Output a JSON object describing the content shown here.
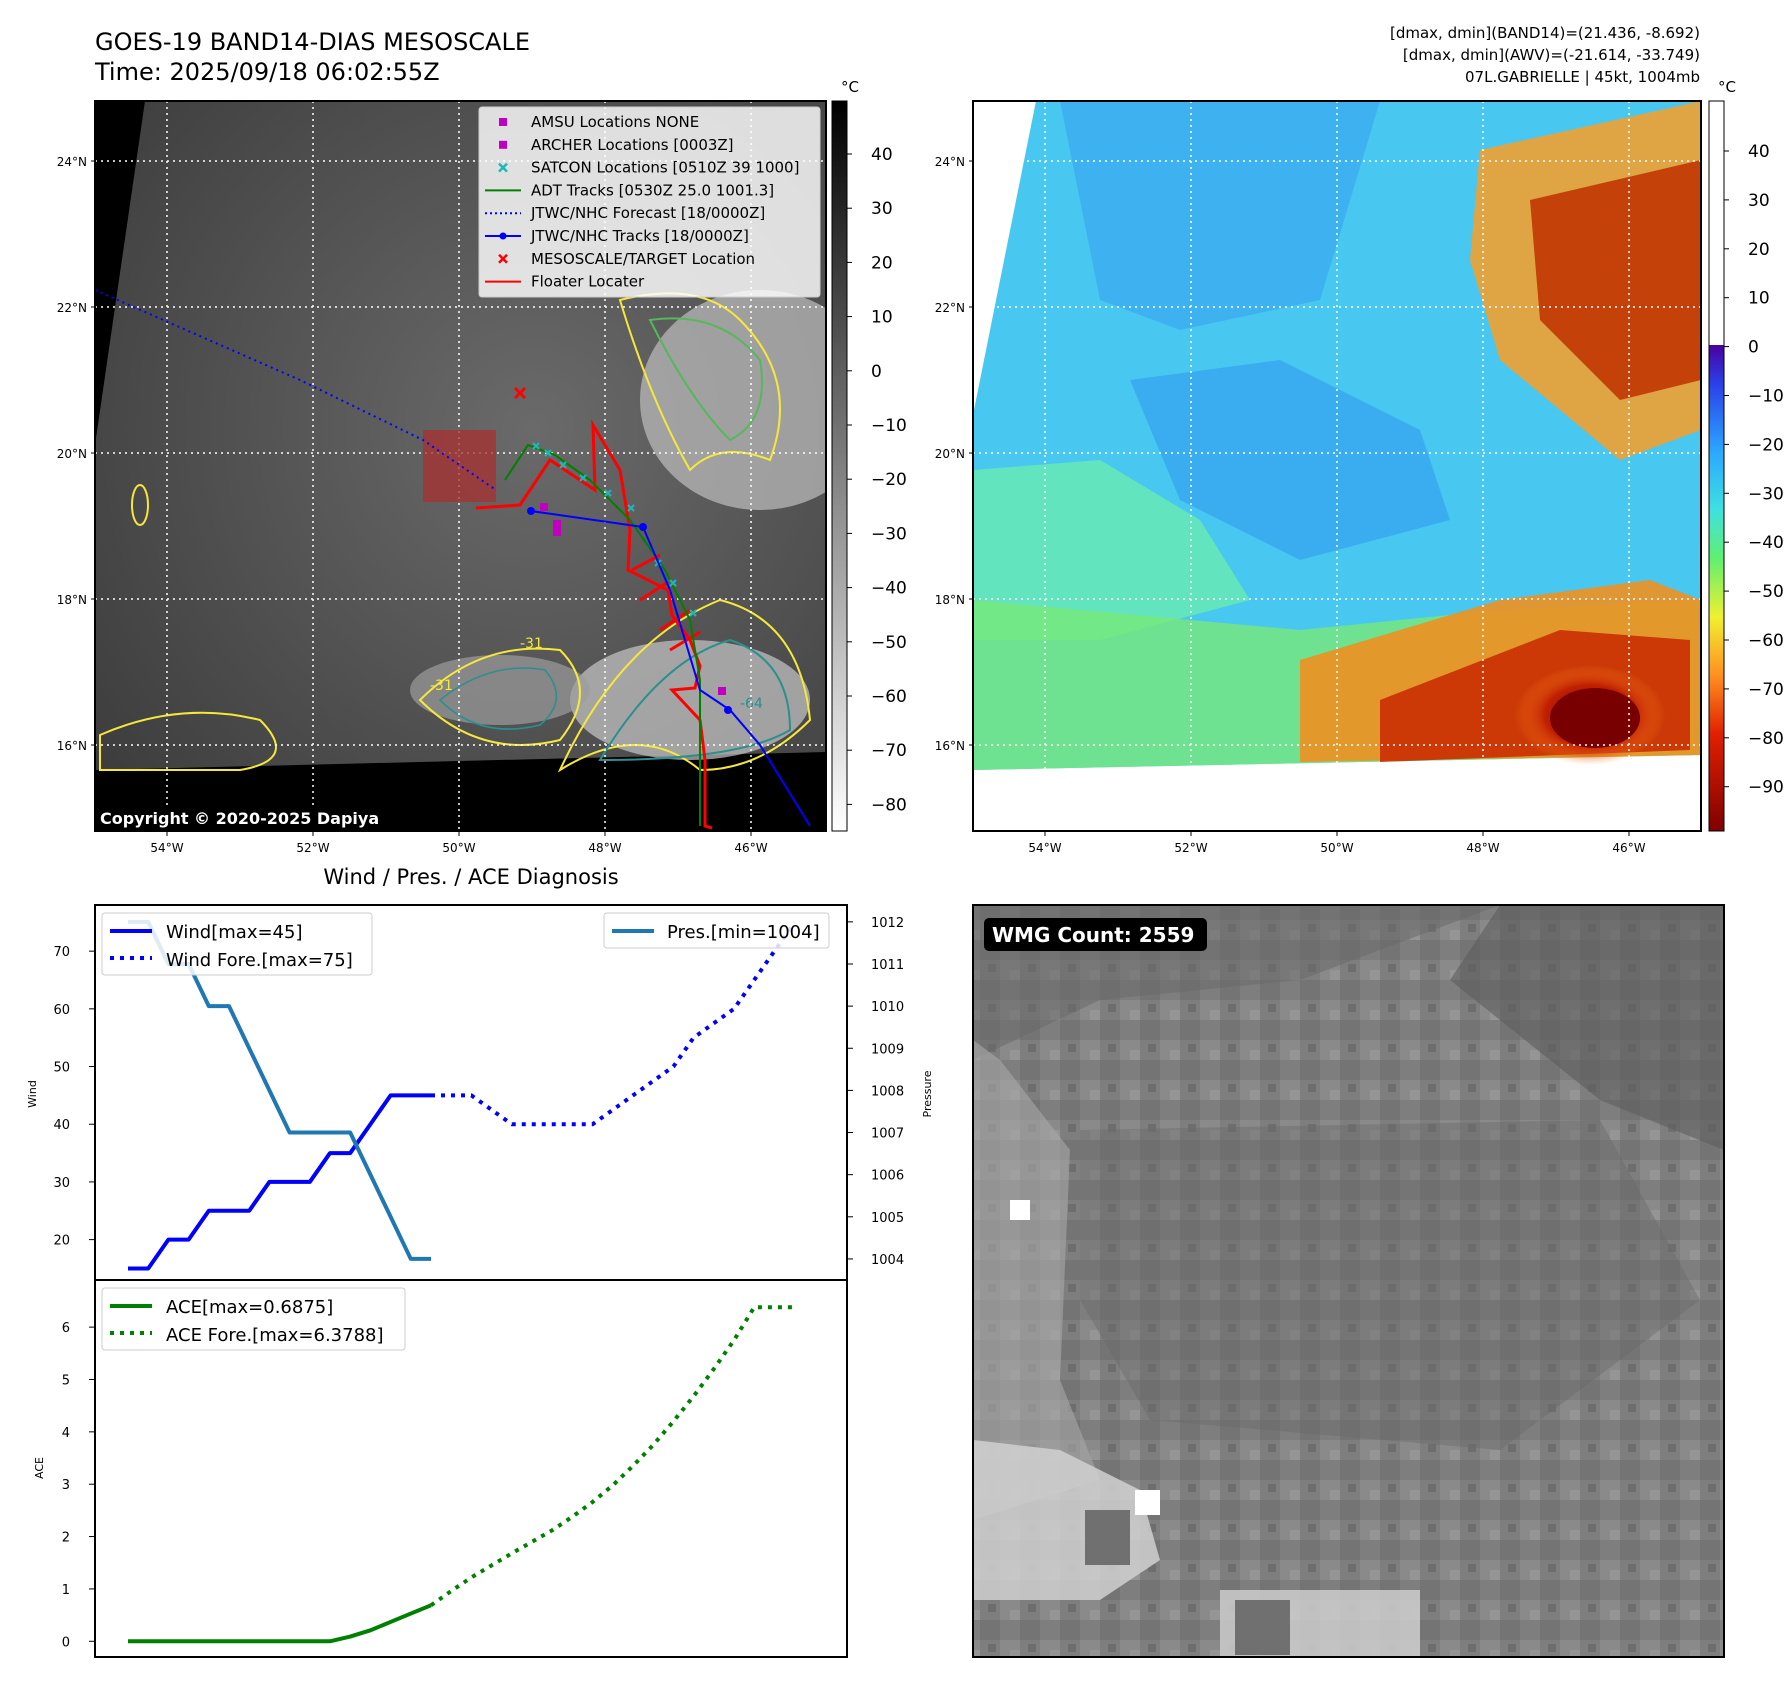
{
  "header": {
    "title_line1": "GOES-19 BAND14-DIAS MESOSCALE",
    "title_line2": "Time: 2025/09/18 06:02:55Z",
    "stats_line1": "[dmax, dmin](BAND14)=(21.436, -8.692)",
    "stats_line2": "[dmax, dmin](AWV)=(-21.614, -33.749)",
    "stats_line3": "07L.GABRIELLE | 45kt, 1004mb"
  },
  "map_panels": {
    "lat_labels": [
      "24°N",
      "22°N",
      "20°N",
      "18°N",
      "16°N"
    ],
    "lon_labels": [
      "54°W",
      "52°W",
      "50°W",
      "48°W",
      "46°W"
    ],
    "copyright": "Copyright © 2020-2025 Dapiya",
    "contour_label": "-31",
    "contour_label2": "-64",
    "contour_colors": {
      "yellow": "#f5e83a",
      "green": "#55b85a",
      "teal": "#2c8f8f",
      "purple": "#3c3c7a"
    }
  },
  "ir_colorbar": {
    "unit": "°C",
    "ticks": [
      "40",
      "30",
      "20",
      "10",
      "0",
      "−10",
      "−20",
      "−30",
      "−40",
      "−50",
      "−60",
      "−70",
      "−80"
    ]
  },
  "awv_colorbar": {
    "unit": "°C",
    "ticks": [
      "40",
      "30",
      "20",
      "10",
      "0",
      "−10",
      "−20",
      "−30",
      "−40",
      "−50",
      "−60",
      "−70",
      "−80",
      "−90"
    ]
  },
  "legend": [
    {
      "label": "AMSU Locations NONE",
      "kind": "square",
      "color": "#c000c0"
    },
    {
      "label": "ARCHER Locations [0003Z]",
      "kind": "square",
      "color": "#c000c0"
    },
    {
      "label": "SATCON Locations [0510Z 39 1000]",
      "kind": "x",
      "color": "#1fb8b8"
    },
    {
      "label": "ADT Tracks [0530Z 25.0 1001.3]",
      "kind": "line",
      "color": "#008000"
    },
    {
      "label": "JTWC/NHC Forecast [18/0000Z]",
      "kind": "dotted",
      "color": "#0000ff"
    },
    {
      "label": "JTWC/NHC Tracks [18/0000Z]",
      "kind": "linedot",
      "color": "#0000ff"
    },
    {
      "label": "MESOSCALE/TARGET Location",
      "kind": "x",
      "color": "#ff0000"
    },
    {
      "label": "Floater Locater",
      "kind": "line",
      "color": "#ff0000"
    }
  ],
  "diagnosis": {
    "title": "Wind / Pres. / ACE Diagnosis",
    "wind_axis_label": "Wind",
    "pressure_axis_label": "Pressure",
    "ace_axis_label": "ACE",
    "wind_ticks": [
      "70",
      "60",
      "50",
      "40",
      "30",
      "20"
    ],
    "pressure_ticks": [
      "1012",
      "1011",
      "1010",
      "1009",
      "1008",
      "1007",
      "1006",
      "1005",
      "1004"
    ],
    "ace_ticks": [
      "6",
      "5",
      "4",
      "3",
      "2",
      "1",
      "0"
    ],
    "legend_wind": "Wind[max=45]",
    "legend_wind_fore": "Wind Fore.[max=75]",
    "legend_pres": "Pres.[min=1004]",
    "legend_ace": "ACE[max=0.6875]",
    "legend_ace_fore": "ACE Fore.[max=6.3788]"
  },
  "wmg": {
    "label": "WMG Count: 2559"
  },
  "chart_data": [
    {
      "type": "line",
      "title": "Wind / Pres. / ACE Diagnosis",
      "ylabel": "Wind",
      "ylim": [
        13,
        78
      ],
      "x": [
        0,
        1,
        2,
        3,
        4,
        5,
        6,
        7,
        8,
        9,
        10,
        11,
        12,
        13,
        14,
        15,
        16,
        17,
        18,
        19,
        20,
        21,
        22,
        23,
        24,
        25,
        26,
        27,
        28,
        29,
        30,
        31,
        32,
        33
      ],
      "series": [
        {
          "name": "Wind[max=45]",
          "style": "solid",
          "color": "#0000ff",
          "x": [
            0,
            1,
            2,
            3,
            4,
            5,
            6,
            7,
            8,
            9,
            10,
            11,
            12,
            13,
            14,
            15
          ],
          "values": [
            15,
            15,
            20,
            20,
            25,
            25,
            25,
            30,
            30,
            30,
            35,
            35,
            40,
            45,
            45,
            45
          ]
        },
        {
          "name": "Wind Fore.[max=75]",
          "style": "dotted",
          "color": "#0000ff",
          "x": [
            15,
            16,
            17,
            18,
            19,
            20,
            21,
            22,
            23,
            24,
            25,
            26,
            27,
            28,
            29,
            30,
            31,
            32,
            33
          ],
          "values": [
            45,
            45,
            45,
            42.5,
            40,
            40,
            40,
            40,
            40,
            42.5,
            45,
            47.5,
            50,
            55,
            57.5,
            60,
            65,
            70,
            75
          ]
        },
        {
          "name": "Pres.[min=1004]",
          "style": "solid",
          "color": "#1f77b4",
          "axis": "right",
          "ylim": [
            1003.5,
            1012.4
          ],
          "x": [
            0,
            1,
            2,
            3,
            4,
            5,
            6,
            7,
            8,
            9,
            10,
            11,
            12,
            13,
            14,
            15
          ],
          "values": [
            1012,
            1012,
            1011,
            1011,
            1010,
            1010,
            1009,
            1008,
            1007,
            1007,
            1007,
            1007,
            1006,
            1005,
            1004,
            1004
          ]
        }
      ]
    },
    {
      "type": "line",
      "ylabel": "ACE",
      "ylim": [
        -0.3,
        6.9
      ],
      "series": [
        {
          "name": "ACE[max=0.6875]",
          "style": "solid",
          "color": "#008000",
          "x": [
            0,
            1,
            2,
            3,
            4,
            5,
            6,
            7,
            8,
            9,
            10,
            11,
            12,
            13,
            14,
            15
          ],
          "values": [
            0,
            0,
            0,
            0,
            0,
            0,
            0,
            0,
            0,
            0,
            0,
            0.09,
            0.21,
            0.37,
            0.53,
            0.6875
          ]
        },
        {
          "name": "ACE Fore.[max=6.3788]",
          "style": "dotted",
          "color": "#008000",
          "x": [
            15,
            16,
            17,
            18,
            19,
            20,
            21,
            22,
            23,
            24,
            25,
            26,
            27,
            28,
            29,
            30,
            31,
            32,
            33
          ],
          "values": [
            0.6875,
            0.96,
            1.22,
            1.45,
            1.68,
            1.9,
            2.12,
            2.38,
            2.66,
            2.98,
            3.35,
            3.75,
            4.2,
            4.68,
            5.2,
            5.75,
            6.3788,
            6.3788,
            6.3788
          ]
        }
      ]
    }
  ]
}
